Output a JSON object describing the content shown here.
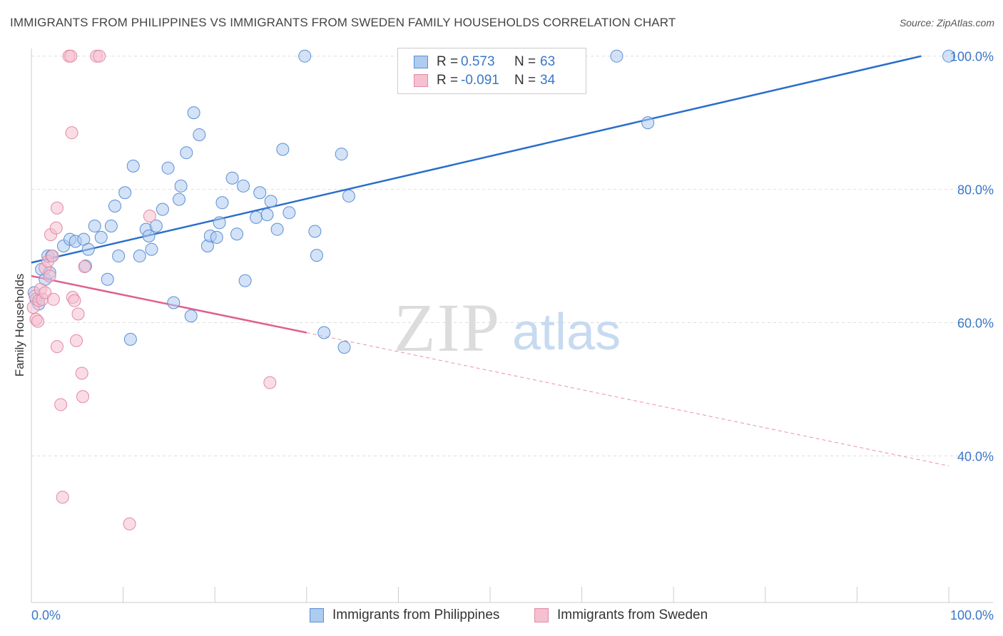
{
  "title": "IMMIGRANTS FROM PHILIPPINES VS IMMIGRANTS FROM SWEDEN FAMILY HOUSEHOLDS CORRELATION CHART",
  "source": "Source: ZipAtlas.com",
  "watermark": {
    "zip": "ZIP",
    "atlas": "atlas"
  },
  "legend": {
    "rows": [
      {
        "r_label": "R =",
        "r_value": "0.573",
        "n_label": "N =",
        "n_value": "63"
      },
      {
        "r_label": "R =",
        "r_value": "-0.091",
        "n_label": "N =",
        "n_value": "34"
      }
    ]
  },
  "bottom_legend": {
    "series1": "Immigrants from Philippines",
    "series2": "Immigrants from Sweden"
  },
  "colors": {
    "blue_fill": "#aecbf0",
    "blue_stroke": "#5b8fd6",
    "blue_line": "#2a6ecb",
    "pink_fill": "#f5c0d0",
    "pink_stroke": "#e28aa6",
    "pink_line": "#e0608e",
    "axis_text": "#3a77c9"
  },
  "chart_data": {
    "type": "scatter",
    "title": "IMMIGRANTS FROM PHILIPPINES VS IMMIGRANTS FROM SWEDEN FAMILY HOUSEHOLDS CORRELATION CHART",
    "xlabel": "",
    "ylabel": "Family Households",
    "xlim": [
      0,
      100
    ],
    "ylim": [
      18,
      102
    ],
    "x_tick_labels": [
      "0.0%",
      "100.0%"
    ],
    "y_ticks": [
      40,
      60,
      80,
      100
    ],
    "y_tick_labels": [
      "40.0%",
      "60.0%",
      "80.0%",
      "100.0%"
    ],
    "grid": true,
    "series": [
      {
        "name": "Immigrants from Philippines",
        "color": "#aecbf0",
        "trend": {
          "x": [
            0,
            97
          ],
          "y": [
            69,
            100
          ]
        },
        "points": [
          [
            0.3,
            64.5
          ],
          [
            0.5,
            63.5
          ],
          [
            0.8,
            62.8
          ],
          [
            1.1,
            68
          ],
          [
            1.5,
            66.5
          ],
          [
            2,
            67.5
          ],
          [
            1.8,
            70
          ],
          [
            2.2,
            70
          ],
          [
            3.5,
            71.5
          ],
          [
            4.2,
            72.5
          ],
          [
            4.8,
            72.2
          ],
          [
            5.7,
            72.5
          ],
          [
            6.2,
            71
          ],
          [
            7.6,
            72.8
          ],
          [
            6.9,
            74.5
          ],
          [
            8.7,
            74.5
          ],
          [
            8.3,
            66.5
          ],
          [
            9.5,
            70
          ],
          [
            9.1,
            77.5
          ],
          [
            10.2,
            79.5
          ],
          [
            11.1,
            83.5
          ],
          [
            11.8,
            70
          ],
          [
            12.5,
            74
          ],
          [
            12.8,
            73
          ],
          [
            13.1,
            71
          ],
          [
            13.6,
            74.5
          ],
          [
            14.3,
            77
          ],
          [
            14.9,
            83.2
          ],
          [
            15.5,
            63
          ],
          [
            16.1,
            78.5
          ],
          [
            16.3,
            80.5
          ],
          [
            16.9,
            85.5
          ],
          [
            17.4,
            61
          ],
          [
            17.7,
            91.5
          ],
          [
            18.3,
            88.2
          ],
          [
            19.2,
            71.5
          ],
          [
            19.5,
            73
          ],
          [
            20.2,
            72.8
          ],
          [
            20.5,
            75
          ],
          [
            20.8,
            78
          ],
          [
            21.9,
            81.7
          ],
          [
            22.4,
            73.3
          ],
          [
            23.1,
            80.5
          ],
          [
            23.3,
            66.3
          ],
          [
            24.5,
            75.8
          ],
          [
            24.9,
            79.5
          ],
          [
            25.7,
            76.2
          ],
          [
            26.1,
            78.2
          ],
          [
            26.8,
            74
          ],
          [
            27.4,
            86
          ],
          [
            28.1,
            76.5
          ],
          [
            29.8,
            100
          ],
          [
            30.9,
            73.7
          ],
          [
            31.1,
            70.1
          ],
          [
            31.9,
            58.5
          ],
          [
            33.8,
            85.3
          ],
          [
            34.1,
            56.3
          ],
          [
            34.6,
            79
          ],
          [
            10.8,
            57.5
          ],
          [
            5.9,
            68.5
          ],
          [
            63.8,
            100
          ],
          [
            67.2,
            90
          ],
          [
            100,
            100
          ]
        ]
      },
      {
        "name": "Immigrants from Sweden",
        "color": "#f5c0d0",
        "trend": {
          "x": [
            0,
            30
          ],
          "y": [
            67,
            58.5
          ],
          "dash_to": [
            100,
            38.5
          ]
        },
        "points": [
          [
            0.2,
            62.3
          ],
          [
            0.4,
            64
          ],
          [
            0.5,
            60.5
          ],
          [
            0.7,
            60.2
          ],
          [
            0.8,
            63.3
          ],
          [
            1,
            65
          ],
          [
            1.2,
            63.5
          ],
          [
            1.5,
            64.5
          ],
          [
            1.5,
            68.2
          ],
          [
            1.8,
            69.2
          ],
          [
            2,
            67
          ],
          [
            2.1,
            73.2
          ],
          [
            2.3,
            70
          ],
          [
            2.4,
            63.5
          ],
          [
            2.7,
            74.2
          ],
          [
            2.8,
            56.4
          ],
          [
            2.8,
            77.2
          ],
          [
            3.2,
            47.7
          ],
          [
            3.4,
            33.8
          ],
          [
            4.1,
            100
          ],
          [
            4.3,
            100
          ],
          [
            4.4,
            88.5
          ],
          [
            4.5,
            63.8
          ],
          [
            4.7,
            63.3
          ],
          [
            4.9,
            57.3
          ],
          [
            5.1,
            61.3
          ],
          [
            5.5,
            52.4
          ],
          [
            5.6,
            48.9
          ],
          [
            5.8,
            68.4
          ],
          [
            7.1,
            100
          ],
          [
            7.4,
            100
          ],
          [
            10.7,
            29.8
          ],
          [
            12.9,
            76
          ],
          [
            26,
            51
          ]
        ]
      }
    ]
  }
}
